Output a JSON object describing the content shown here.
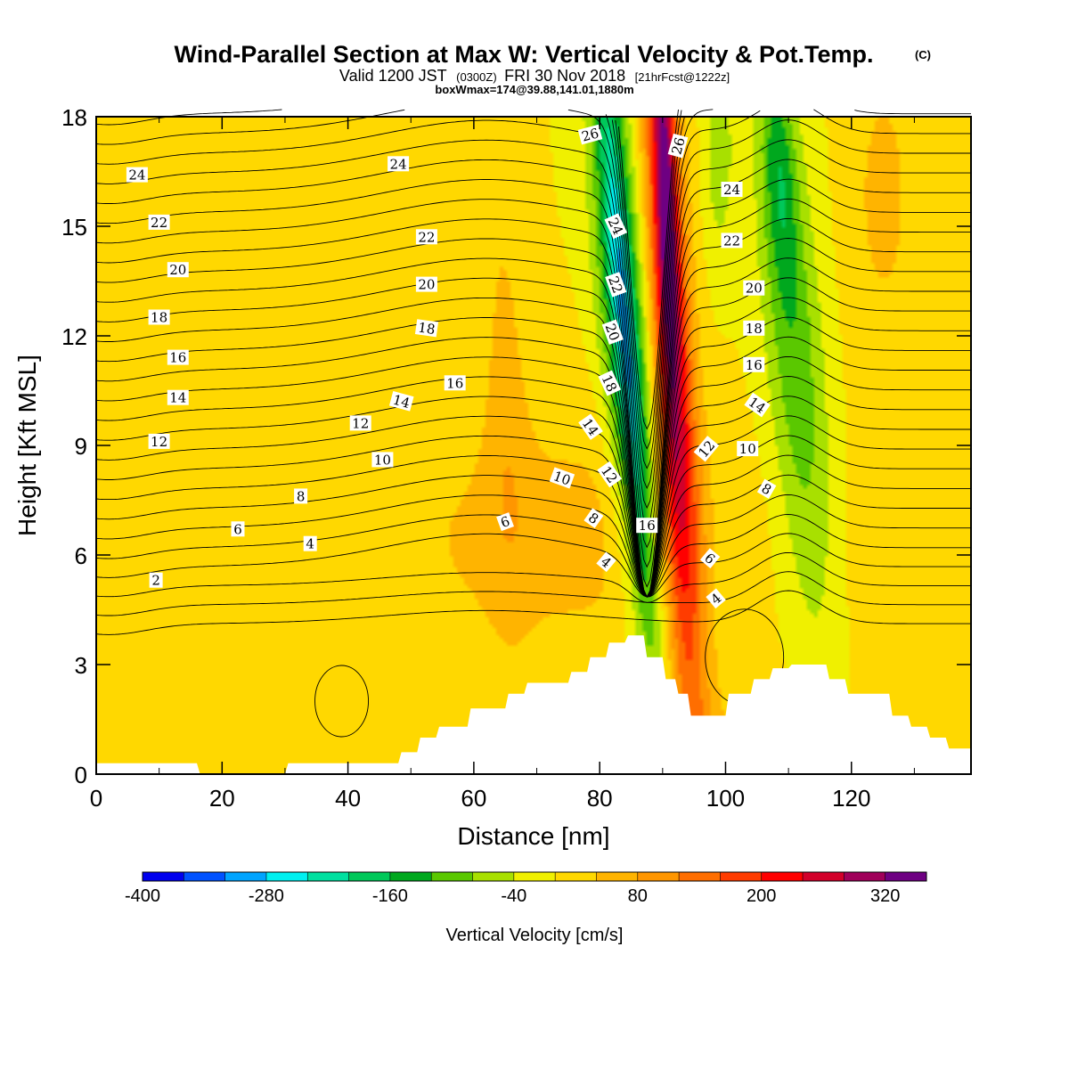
{
  "titles": {
    "main": "Wind-Parallel Section at Max W: Vertical Velocity & Pot.Temp.",
    "copyright": "(C)",
    "valid_lead": "Valid 1200 JST",
    "valid_utc": "(0300Z)",
    "valid_date": "FRI 30 Nov 2018",
    "forecast": "[21hrFcst@1222z]",
    "box": "boxWmax=174@39.88,141.01,1880m"
  },
  "chart_data": {
    "type": "heatmap",
    "xlabel": "Distance [nm]",
    "ylabel": "Height [Kft MSL]",
    "xlim": [
      0,
      139
    ],
    "ylim": [
      0,
      18
    ],
    "x_ticks": [
      0,
      20,
      40,
      60,
      80,
      100,
      120
    ],
    "y_ticks": [
      0,
      3,
      6,
      9,
      12,
      15,
      18
    ],
    "colorbar": {
      "label": "Vertical Velocity [cm/s]",
      "min": -400,
      "max": 360,
      "step": 40,
      "tick_values": [
        -400,
        -280,
        -160,
        -40,
        80,
        200,
        320
      ],
      "colors": [
        "#0000ee",
        "#0052ff",
        "#00a4ff",
        "#00f0f0",
        "#00e0a0",
        "#00c85a",
        "#00a81e",
        "#5ac800",
        "#a8e000",
        "#f0f000",
        "#ffd800",
        "#ffb400",
        "#ff9600",
        "#ff6e00",
        "#ff3c00",
        "#ff0000",
        "#d2002a",
        "#a0005a",
        "#6e0082"
      ]
    },
    "wfield_blobs": [
      {
        "x": 72,
        "y": 6.5,
        "sx": 20,
        "sy": 2.6,
        "w": 55,
        "tilt": 0.3
      },
      {
        "x": 65,
        "y": 11,
        "sx": 2.5,
        "sy": 4.5,
        "w": 48,
        "tilt": -0.12
      },
      {
        "x": 95,
        "y": 0.6,
        "sx": 10,
        "sy": 1.6,
        "w": 38,
        "tilt": 0
      },
      {
        "x": 130,
        "y": 4.8,
        "sx": 7,
        "sy": 4.5,
        "w": 35,
        "tilt": 0
      },
      {
        "x": 125,
        "y": 16,
        "sx": 4,
        "sy": 3,
        "w": 50,
        "tilt": 0
      },
      {
        "x": 17,
        "y": 10,
        "sx": 3,
        "sy": 7,
        "w": 22,
        "tilt": 0
      },
      {
        "x": 26,
        "y": 12.5,
        "sx": 4,
        "sy": 5,
        "w": 15,
        "tilt": 0
      },
      {
        "x": 84.5,
        "y": 12.5,
        "sx": 2.5,
        "sy": 7,
        "w": -150,
        "tilt": -0.48
      },
      {
        "x": 84,
        "y": 12,
        "sx": 1.3,
        "sy": 5.5,
        "w": -140,
        "tilt": -0.48
      },
      {
        "x": 82,
        "y": 11,
        "sx": 2,
        "sy": 5,
        "w": -50,
        "tilt": -0.48
      },
      {
        "x": 91.5,
        "y": 11.5,
        "sx": 2.3,
        "sy": 8,
        "w": 250,
        "tilt": -0.3
      },
      {
        "x": 90.5,
        "y": 16,
        "sx": 1.1,
        "sy": 4,
        "w": 170,
        "tilt": -0.2
      },
      {
        "x": 111,
        "y": 11.5,
        "sx": 3.3,
        "sy": 5.5,
        "w": -110,
        "tilt": -0.45
      },
      {
        "x": 108.5,
        "y": 16.5,
        "sx": 1.8,
        "sy": 2.2,
        "w": -90,
        "tilt": -0.3
      },
      {
        "x": 99,
        "y": 17,
        "sx": 1.6,
        "sy": 2,
        "w": -65,
        "tilt": 0
      }
    ],
    "terrain": {
      "x": [
        0,
        16,
        16.5,
        30,
        30.5,
        48,
        48.5,
        51,
        51.5,
        54,
        54.5,
        59,
        59.5,
        65,
        65.5,
        68,
        68.5,
        75,
        75.5,
        78,
        78.5,
        81,
        81.5,
        84,
        84.5,
        87,
        87.5,
        90,
        90.5,
        92,
        92.5,
        94,
        94.5,
        100,
        100.5,
        104,
        104.5,
        107,
        107.5,
        110,
        110.5,
        116,
        116.5,
        119,
        119.5,
        126,
        126.5,
        129,
        129.5,
        132,
        132.5,
        135,
        135.5,
        139
      ],
      "height": [
        0.3,
        0.3,
        0,
        0,
        0.3,
        0.3,
        0.6,
        0.6,
        1.0,
        1.0,
        1.3,
        1.3,
        1.8,
        1.8,
        2.2,
        2.2,
        2.5,
        2.5,
        2.8,
        2.8,
        3.2,
        3.2,
        3.6,
        3.6,
        3.8,
        3.8,
        3.2,
        3.2,
        2.6,
        2.6,
        2.2,
        2.2,
        1.6,
        1.6,
        2.2,
        2.2,
        2.6,
        2.6,
        2.9,
        2.9,
        3.0,
        3.0,
        2.6,
        2.6,
        2.2,
        2.2,
        1.6,
        1.6,
        1.3,
        1.3,
        1.0,
        1.0,
        0.7,
        0.7
      ]
    },
    "theta_contours": {
      "levels_from": 1,
      "levels_to": 30,
      "step": 1,
      "label_levels": [
        2,
        4,
        6,
        8,
        10,
        12,
        14,
        16,
        18,
        20,
        22,
        24,
        26
      ]
    },
    "contour_labels": [
      {
        "text": "2",
        "x": 9.5,
        "y": 5.3,
        "rot": 0
      },
      {
        "text": "4",
        "x": 34,
        "y": 6.3,
        "rot": 0
      },
      {
        "text": "6",
        "x": 22.5,
        "y": 6.7,
        "rot": 0
      },
      {
        "text": "8",
        "x": 32.5,
        "y": 7.6,
        "rot": 0
      },
      {
        "text": "10",
        "x": 45.5,
        "y": 8.6,
        "rot": 0
      },
      {
        "text": "12",
        "x": 42,
        "y": 9.6,
        "rot": 0
      },
      {
        "text": "14",
        "x": 48.5,
        "y": 10.2,
        "rot": 15
      },
      {
        "text": "16",
        "x": 57,
        "y": 10.7,
        "rot": 0
      },
      {
        "text": "18",
        "x": 52.5,
        "y": 12.2,
        "rot": 8
      },
      {
        "text": "20",
        "x": 52.5,
        "y": 13.4,
        "rot": 0
      },
      {
        "text": "22",
        "x": 52.5,
        "y": 14.7,
        "rot": 0
      },
      {
        "text": "24",
        "x": 48,
        "y": 16.7,
        "rot": 0
      },
      {
        "text": "24",
        "x": 6.5,
        "y": 16.4,
        "rot": 0
      },
      {
        "text": "22",
        "x": 10,
        "y": 15.1,
        "rot": 0
      },
      {
        "text": "20",
        "x": 13,
        "y": 13.8,
        "rot": 0
      },
      {
        "text": "18",
        "x": 10,
        "y": 12.5,
        "rot": 0
      },
      {
        "text": "16",
        "x": 13,
        "y": 11.4,
        "rot": 0
      },
      {
        "text": "14",
        "x": 13,
        "y": 10.3,
        "rot": 0
      },
      {
        "text": "12",
        "x": 10,
        "y": 9.1,
        "rot": 0
      },
      {
        "text": "4",
        "x": 81,
        "y": 5.8,
        "rot": 40
      },
      {
        "text": "6",
        "x": 65,
        "y": 6.9,
        "rot": -20
      },
      {
        "text": "8",
        "x": 79,
        "y": 7.0,
        "rot": 35
      },
      {
        "text": "10",
        "x": 74,
        "y": 8.1,
        "rot": 20
      },
      {
        "text": "12",
        "x": 81.5,
        "y": 8.2,
        "rot": 55
      },
      {
        "text": "14",
        "x": 78.5,
        "y": 9.5,
        "rot": 55
      },
      {
        "text": "16",
        "x": 87.5,
        "y": 6.8,
        "rot": 0
      },
      {
        "text": "18",
        "x": 81.5,
        "y": 10.7,
        "rot": 65
      },
      {
        "text": "20",
        "x": 82,
        "y": 12.1,
        "rot": 70
      },
      {
        "text": "22",
        "x": 82.5,
        "y": 13.4,
        "rot": 70
      },
      {
        "text": "24",
        "x": 82.5,
        "y": 15.0,
        "rot": 65
      },
      {
        "text": "26",
        "x": 78.5,
        "y": 17.5,
        "rot": -15
      },
      {
        "text": "26",
        "x": 92.5,
        "y": 17.2,
        "rot": -75
      },
      {
        "text": "24",
        "x": 101,
        "y": 16.0,
        "rot": 0
      },
      {
        "text": "22",
        "x": 101,
        "y": 14.6,
        "rot": 0
      },
      {
        "text": "20",
        "x": 104.5,
        "y": 13.3,
        "rot": 0
      },
      {
        "text": "18",
        "x": 104.5,
        "y": 12.2,
        "rot": 0
      },
      {
        "text": "16",
        "x": 104.5,
        "y": 11.2,
        "rot": 0
      },
      {
        "text": "14",
        "x": 105,
        "y": 10.1,
        "rot": 35
      },
      {
        "text": "12",
        "x": 97,
        "y": 8.9,
        "rot": -50
      },
      {
        "text": "10",
        "x": 103.5,
        "y": 8.9,
        "rot": 0
      },
      {
        "text": "8",
        "x": 106.5,
        "y": 7.8,
        "rot": 30
      },
      {
        "text": "6",
        "x": 97.5,
        "y": 5.9,
        "rot": 40
      },
      {
        "text": "4",
        "x": 98.5,
        "y": 4.8,
        "rot": -40
      }
    ]
  }
}
